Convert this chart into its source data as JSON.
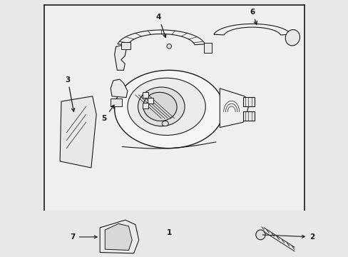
{
  "bg_color": "#e8e8e8",
  "box_bg": "#efefef",
  "line_color": "#1a1a1a",
  "fig_width": 4.89,
  "fig_height": 3.6,
  "dpi": 100
}
